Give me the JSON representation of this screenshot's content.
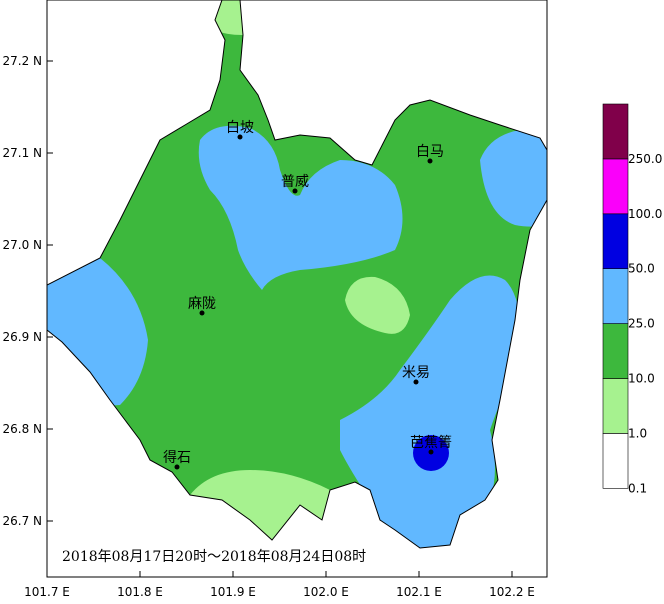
{
  "map": {
    "date_range": "2018年08月17日20时～2018年08月24日08时",
    "x_axis": {
      "ticks": [
        "101.7 E",
        "101.8 E",
        "101.9 E",
        "102.0 E",
        "102.1 E",
        "102.2 E"
      ]
    },
    "y_axis": {
      "ticks": [
        "27.2 N",
        "27.1 N",
        "27.0 N",
        "26.9 N",
        "26.8 N",
        "26.7 N"
      ]
    },
    "cities": [
      "白坡",
      "普威",
      "白马",
      "麻陇",
      "米易",
      "得石",
      "芭蕉箐"
    ]
  },
  "legend": {
    "labels": [
      "0.1",
      "1.0",
      "10.0",
      "25.0",
      "50.0",
      "100.0",
      "250.0"
    ],
    "colors": [
      "#ffffff",
      "#a6f28f",
      "#3db83d",
      "#61b8ff",
      "#0000e1",
      "#fa00fa",
      "#80004a"
    ]
  }
}
